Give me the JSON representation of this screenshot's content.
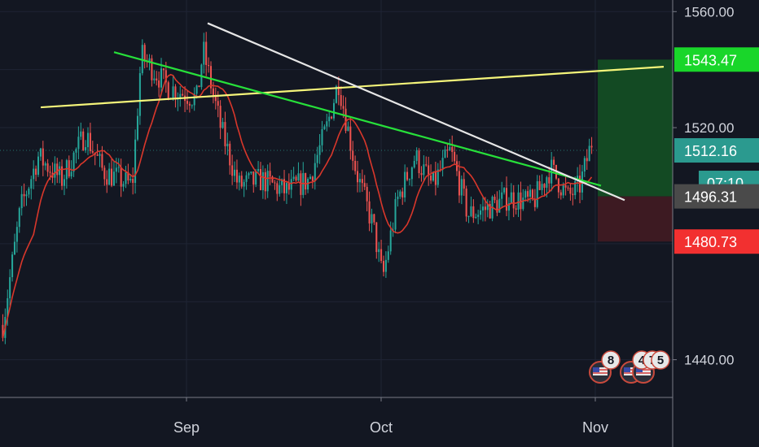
{
  "chart_data": {
    "type": "candlestick",
    "title": "",
    "xlabel": "",
    "ylabel": "",
    "ylim": [
      1427,
      1564
    ],
    "y_ticks": [
      "1560.00",
      "1520.00",
      "1440.00"
    ],
    "x_ticks": [
      "Sep",
      "Oct",
      "Nov"
    ],
    "grid": true,
    "moving_average": "red line",
    "trendlines": [
      {
        "color": "#f5f57a",
        "from": [
          0,
          1527
        ],
        "to": [
          1,
          1541
        ]
      },
      {
        "color": "#27e03a",
        "from": [
          0,
          1546
        ],
        "to": [
          1,
          1500
        ]
      },
      {
        "color": "#e6e6e6",
        "from": [
          0,
          1556
        ],
        "to": [
          1,
          1495
        ]
      }
    ],
    "position": {
      "entry": "1496.31",
      "target": "1543.47",
      "stop": "1480.73",
      "current": "1512.16",
      "countdown": "07:10"
    },
    "event_badges": [
      "8",
      "4",
      "7",
      "5"
    ]
  },
  "colors": {
    "background": "#131722",
    "grid": "#1f2434",
    "up": "#26a69a",
    "down": "#ef5350",
    "ma": "#d9372b",
    "target_zone": "#134a23",
    "stop_zone": "#3d1a22",
    "target_tag": "#19d62a",
    "current_tag": "#2b9a8f",
    "entry_tag": "#4a4a4a",
    "stop_tag": "#f23030"
  }
}
